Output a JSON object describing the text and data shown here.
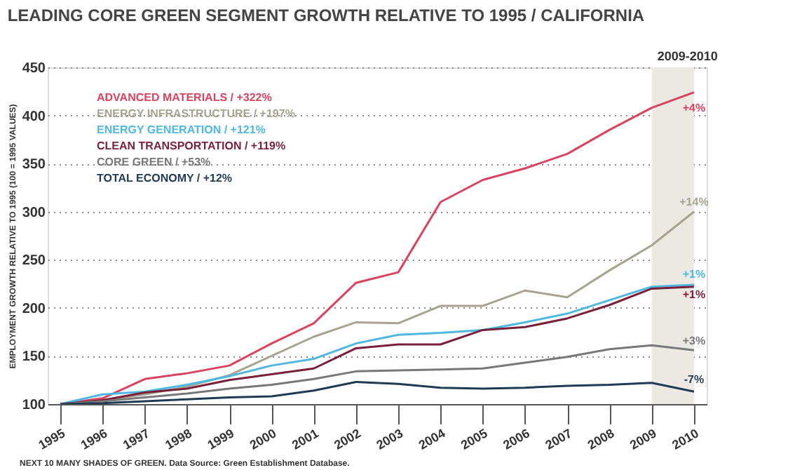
{
  "chart_data": {
    "type": "line",
    "title": "LEADING CORE GREEN SEGMENT GROWTH RELATIVE TO 1995 / CALIFORNIA",
    "ylabel": "EMPLOYMENT GROWTH RELATIVE TO 1995 (100 = 1995 VALUES)",
    "categories": [
      "1995",
      "1996",
      "1997",
      "1998",
      "1999",
      "2000",
      "2001",
      "2002",
      "2003",
      "2004",
      "2005",
      "2006",
      "2007",
      "2008",
      "2009",
      "2010"
    ],
    "series": [
      {
        "name": "ADVANCED MATERIALS / +322%",
        "color": "#d9435f",
        "values": [
          100,
          106,
          126,
          132,
          140,
          163,
          184,
          226,
          237,
          310,
          333,
          345,
          360,
          385,
          408,
          424
        ]
      },
      {
        "name": "ENERGY INFRASTRUCTURE / +197%",
        "color": "#a8a38e",
        "values": [
          100,
          104,
          110,
          118,
          130,
          150,
          170,
          185,
          184,
          202,
          202,
          218,
          211,
          239,
          265,
          300
        ]
      },
      {
        "name": "ENERGY GENERATION / +121%",
        "color": "#4fb8e0",
        "values": [
          100,
          110,
          113,
          120,
          129,
          140,
          147,
          163,
          172,
          174,
          177,
          185,
          194,
          208,
          222,
          224
        ]
      },
      {
        "name": "CLEAN TRANSPORTATION / +119%",
        "color": "#7a1f3a",
        "values": [
          100,
          104,
          112,
          116,
          125,
          131,
          137,
          158,
          162,
          162,
          177,
          180,
          189,
          203,
          220,
          222
        ]
      },
      {
        "name": "CORE GREEN / +53%",
        "color": "#77787a",
        "values": [
          100,
          103,
          107,
          111,
          116,
          120,
          126,
          134,
          135,
          136,
          137,
          143,
          149,
          157,
          161,
          156
        ]
      },
      {
        "name": "TOTAL ECONOMY / +12%",
        "color": "#1f3a55",
        "values": [
          100,
          101,
          103,
          105,
          107,
          108,
          114,
          123,
          121,
          117,
          116,
          117,
          119,
          120,
          122,
          113
        ]
      }
    ],
    "ylim": [
      100,
      450
    ],
    "yticks": [
      100,
      150,
      200,
      250,
      300,
      350,
      400,
      450
    ],
    "grid": "y",
    "legend": "top left",
    "bands": [
      {
        "axis": "x",
        "from": "2009",
        "to": "2010",
        "label": "2009-2010",
        "color": "#ebe9e1"
      }
    ],
    "annotations": [
      {
        "text": "+4%",
        "x": "2010",
        "y": 407
      },
      {
        "text": "+14%",
        "x": "2010",
        "y": 309
      },
      {
        "text": "+1%",
        "x": "2010",
        "y": 234
      },
      {
        "text": "+1%",
        "x": "2010",
        "y": 213
      },
      {
        "text": "+3%",
        "x": "2010",
        "y": 165
      },
      {
        "text": "-7%",
        "x": "2010",
        "y": 125
      },
      "NEXT 10 MANY SHADES OF GREEN. Data Source: Green Establishment Database."
    ]
  }
}
